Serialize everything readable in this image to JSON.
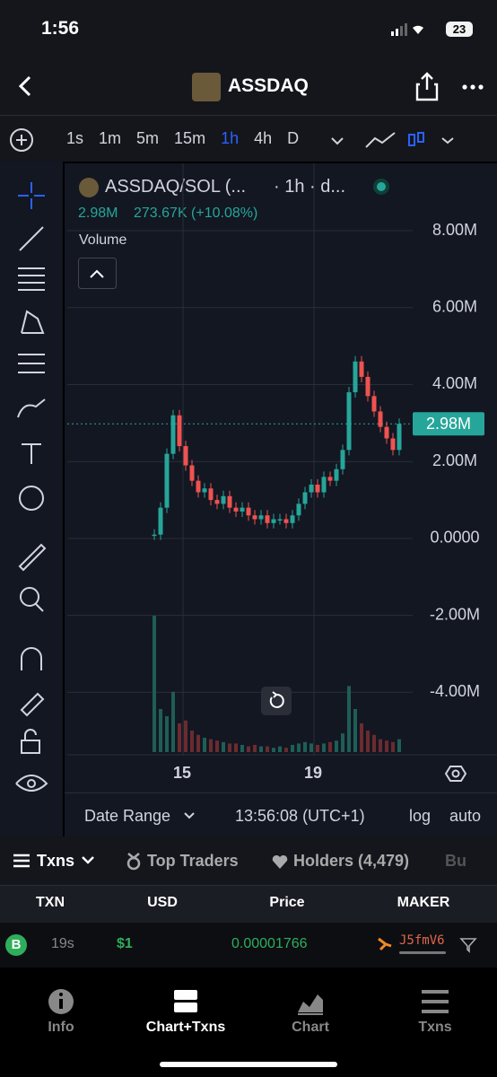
{
  "status_bar": {
    "time": "1:56",
    "battery": "23"
  },
  "header": {
    "title": "ASSDAQ"
  },
  "timeframes": [
    "1s",
    "1m",
    "5m",
    "15m",
    "1h",
    "4h",
    "D"
  ],
  "active_timeframe": "1h",
  "chart": {
    "symbol": "ASSDAQ/SOL (...",
    "interval": "· 1h · d...",
    "change": "273.67K (+10.08%)",
    "volume_label": "Volume",
    "last_price": {
      "value": 2980000,
      "label": "2.98M"
    },
    "ylim": [
      -5600000,
      9680000
    ],
    "yticks": [
      {
        "value": 8000000,
        "label": "8.00M"
      },
      {
        "value": 6000000,
        "label": "6.00M"
      },
      {
        "value": 4000000,
        "label": "4.00M"
      },
      {
        "value": 2000000,
        "label": "2.00M"
      },
      {
        "value": 0,
        "label": "0.0000"
      },
      {
        "value": -2000000,
        "label": "-2.00M"
      },
      {
        "value": -4000000,
        "label": "-4.00M"
      }
    ],
    "xticks": [
      "15",
      "19"
    ],
    "closes": [
      100000,
      800000,
      2200000,
      3200000,
      2400000,
      1900000,
      1500000,
      1200000,
      1300000,
      1000000,
      900000,
      1100000,
      800000,
      700000,
      800000,
      600000,
      500000,
      600000,
      400000,
      500000,
      500000,
      400000,
      600000,
      900000,
      1200000,
      1400000,
      1200000,
      1600000,
      1500000,
      1800000,
      2300000,
      3800000,
      4600000,
      4200000,
      3700000,
      3300000,
      2900000,
      2600000,
      2300000,
      2980000
    ],
    "volume": {
      "ylim": [
        0,
        1000
      ],
      "values": [
        950,
        300,
        250,
        420,
        200,
        220,
        150,
        120,
        100,
        90,
        80,
        70,
        60,
        60,
        50,
        40,
        50,
        40,
        40,
        30,
        40,
        30,
        50,
        60,
        70,
        60,
        50,
        60,
        70,
        80,
        130,
        460,
        300,
        200,
        150,
        120,
        90,
        80,
        70,
        90
      ]
    },
    "footer": {
      "date_range": "Date Range",
      "clock": "13:56:08 (UTC+1)",
      "log": "log",
      "auto": "auto"
    }
  },
  "tabs": [
    "Txns",
    "Top Traders",
    "Holders (4,479)",
    "Bu"
  ],
  "table": {
    "headers": [
      "TXN",
      "USD",
      "Price",
      "MAKER"
    ],
    "rows": [
      {
        "type": "B",
        "age": "19s",
        "usd": "$1",
        "price": "0.00001766",
        "maker": "J5fmV6"
      }
    ]
  },
  "nav": [
    "Info",
    "Chart+Txns",
    "Chart",
    "Txns"
  ]
}
